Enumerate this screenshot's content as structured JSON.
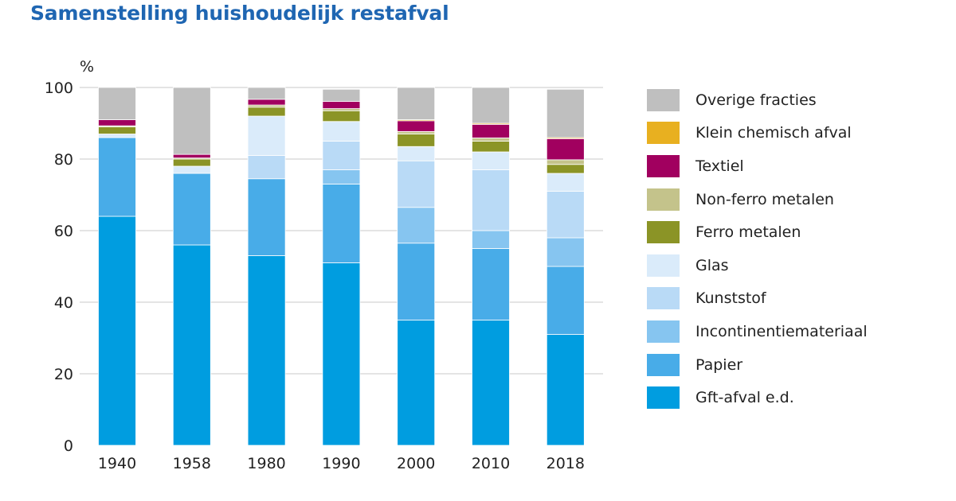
{
  "chart_data": {
    "type": "bar",
    "stacked": true,
    "title": "Samenstelling huishoudelijk restafval",
    "ylabel": "%",
    "xlabel": "",
    "ylim": [
      0,
      100
    ],
    "yticks": [
      0,
      20,
      40,
      60,
      80,
      100
    ],
    "grid": true,
    "legend_position": "right",
    "categories": [
      "1940",
      "1958",
      "1980",
      "1990",
      "2000",
      "2010",
      "2018"
    ],
    "series": [
      {
        "name": "Gft-afval e.d.",
        "color": "#009de0",
        "values": [
          64,
          56,
          53,
          51,
          35,
          35,
          31
        ]
      },
      {
        "name": "Papier",
        "color": "#48ace8",
        "values": [
          22,
          20,
          21.5,
          22,
          21.5,
          20,
          19
        ]
      },
      {
        "name": "Incontinentiemateriaal",
        "color": "#86c5f0",
        "values": [
          0,
          0,
          0,
          4,
          10,
          5,
          8
        ]
      },
      {
        "name": "Kunststof",
        "color": "#b9daf6",
        "values": [
          0,
          0,
          6.5,
          8,
          13,
          17,
          13
        ]
      },
      {
        "name": "Glas",
        "color": "#daebfa",
        "values": [
          1,
          2,
          11,
          5.5,
          4,
          5,
          5
        ]
      },
      {
        "name": "Ferro metalen",
        "color": "#8b9426",
        "values": [
          2,
          2,
          2.5,
          3,
          3.5,
          3,
          2.5
        ]
      },
      {
        "name": "Non-ferro metalen",
        "color": "#c4c38b",
        "values": [
          0.3,
          0.3,
          0.6,
          0.6,
          0.7,
          0.9,
          1.3
        ]
      },
      {
        "name": "Textiel",
        "color": "#a1005f",
        "values": [
          1.7,
          1,
          1.6,
          2,
          3,
          3.8,
          5.9
        ]
      },
      {
        "name": "Klein chemisch afval",
        "color": "#e8b020",
        "values": [
          0,
          0,
          0,
          0,
          0.3,
          0.3,
          0.3
        ]
      },
      {
        "name": "Overige fracties",
        "color": "#bfbfbf",
        "values": [
          9,
          18.7,
          3.3,
          3.4,
          9,
          10,
          13.5
        ]
      }
    ]
  },
  "colors": {
    "title": "#1f66b2",
    "axis_text": "#222222",
    "gridline": "#c8c8c8"
  }
}
